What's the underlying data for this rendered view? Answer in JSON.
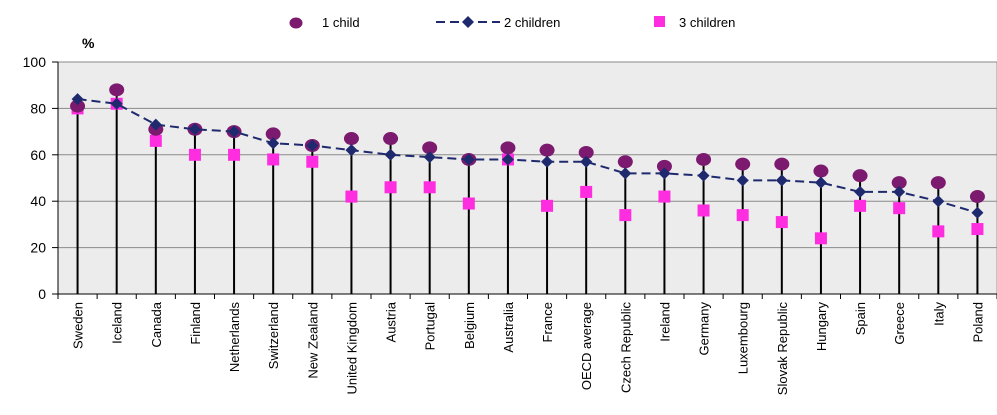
{
  "chart_data": {
    "type": "line",
    "unit_label": "%",
    "ylim": [
      0,
      100
    ],
    "yticks": [
      0,
      20,
      40,
      60,
      80,
      100
    ],
    "grid": true,
    "legend_position": "top",
    "categories": [
      "Sweden",
      "Iceland",
      "Canada",
      "Finland",
      "Netherlands",
      "Switzerland",
      "New Zealand",
      "United Kingdom",
      "Austria",
      "Portugal",
      "Belgium",
      "Australia",
      "France",
      "OECD average",
      "Czech Republic",
      "Ireland",
      "Germany",
      "Luxembourg",
      "Slovak Republic",
      "Hungary",
      "Spain",
      "Greece",
      "Italy",
      "Poland"
    ],
    "series": [
      {
        "name": "1 child",
        "marker": "circle",
        "color": "#7b1a6e",
        "values": [
          81,
          88,
          71,
          71,
          70,
          69,
          64,
          67,
          67,
          63,
          58,
          63,
          62,
          61,
          57,
          55,
          58,
          56,
          56,
          53,
          51,
          48,
          48,
          42
        ]
      },
      {
        "name": "2 children",
        "marker": "diamond",
        "line": "dashed",
        "color": "#1f2a6e",
        "values": [
          84,
          82,
          73,
          71,
          70,
          65,
          64,
          62,
          60,
          59,
          58,
          58,
          57,
          57,
          52,
          52,
          51,
          49,
          49,
          48,
          44,
          44,
          40,
          35
        ]
      },
      {
        "name": "3 children",
        "marker": "square",
        "color": "#ff2de0",
        "values": [
          80,
          82,
          66,
          60,
          60,
          58,
          57,
          42,
          46,
          46,
          39,
          58,
          38,
          44,
          34,
          42,
          36,
          34,
          31,
          24,
          38,
          37,
          27,
          28
        ]
      }
    ]
  }
}
